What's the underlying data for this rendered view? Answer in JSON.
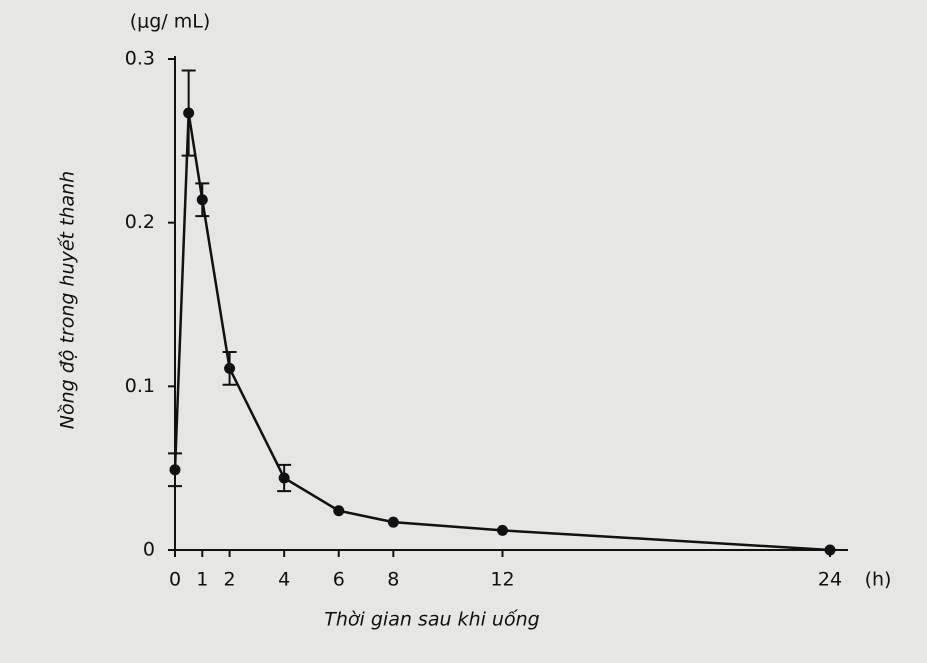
{
  "chart_data": {
    "type": "line",
    "y_unit": "(μg/ mL)",
    "ylabel": "Nồng độ trong huyết thanh",
    "xlabel": "Thời gian sau khi uống",
    "x_unit": "(h)",
    "x": [
      0,
      0.5,
      1,
      2,
      4,
      6,
      8,
      12,
      24
    ],
    "values": [
      0.049,
      0.267,
      0.214,
      0.111,
      0.044,
      0.024,
      0.017,
      0.012,
      0.0
    ],
    "errors": [
      0.01,
      0.026,
      0.01,
      0.01,
      0.008,
      null,
      null,
      null,
      null
    ],
    "color": "#111111",
    "xlim": [
      0,
      24
    ],
    "xticks": [
      0,
      1,
      2,
      4,
      6,
      8,
      12,
      24
    ],
    "ylim": [
      0,
      0.3
    ],
    "yticks": [
      0,
      0.1,
      0.2,
      0.3
    ],
    "grid": false
  }
}
